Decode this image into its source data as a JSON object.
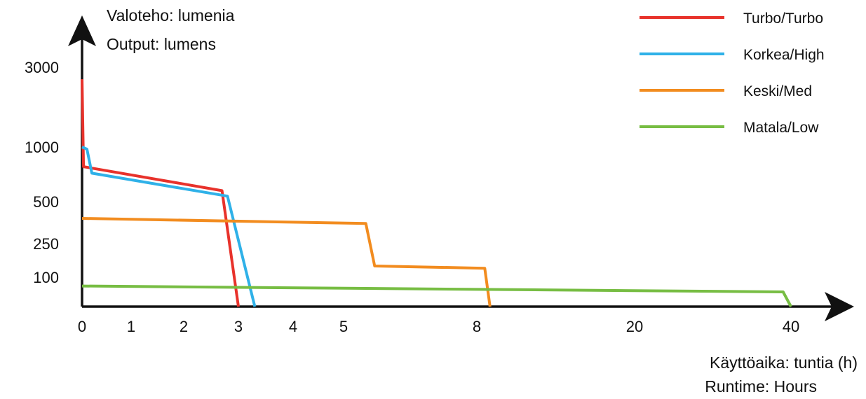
{
  "chart_data": {
    "type": "line",
    "title": "",
    "ylabel_lines": [
      "Valoteho: lumenia",
      "Output: lumens"
    ],
    "xlabel_lines": [
      "Käyttöaika: tuntia (h)",
      "Runtime: Hours"
    ],
    "x_scale": "nonlinear",
    "y_scale": "nonlinear",
    "x_ticks": [
      0,
      1,
      2,
      3,
      4,
      5,
      8,
      20,
      40
    ],
    "y_ticks": [
      100,
      250,
      500,
      1000,
      3000
    ],
    "legend_position": "top-right",
    "grid": false,
    "series": [
      {
        "name": "Turbo/Turbo",
        "color": "#e8322b",
        "points": [
          [
            0,
            2700
          ],
          [
            0.03,
            820
          ],
          [
            2.7,
            600
          ],
          [
            3.0,
            0
          ]
        ]
      },
      {
        "name": "Korkea/High",
        "color": "#2fb1e8",
        "points": [
          [
            0,
            1000
          ],
          [
            0.1,
            980
          ],
          [
            0.2,
            760
          ],
          [
            2.8,
            550
          ],
          [
            3.3,
            0
          ]
        ]
      },
      {
        "name": "Keski/Med",
        "color": "#f28c1f",
        "points": [
          [
            0,
            400
          ],
          [
            5.5,
            370
          ],
          [
            5.7,
            150
          ],
          [
            8.6,
            140
          ],
          [
            9.0,
            0
          ]
        ]
      },
      {
        "name": "Matala/Low",
        "color": "#77bd43",
        "points": [
          [
            0,
            70
          ],
          [
            39,
            50
          ],
          [
            40,
            0
          ]
        ]
      }
    ]
  }
}
